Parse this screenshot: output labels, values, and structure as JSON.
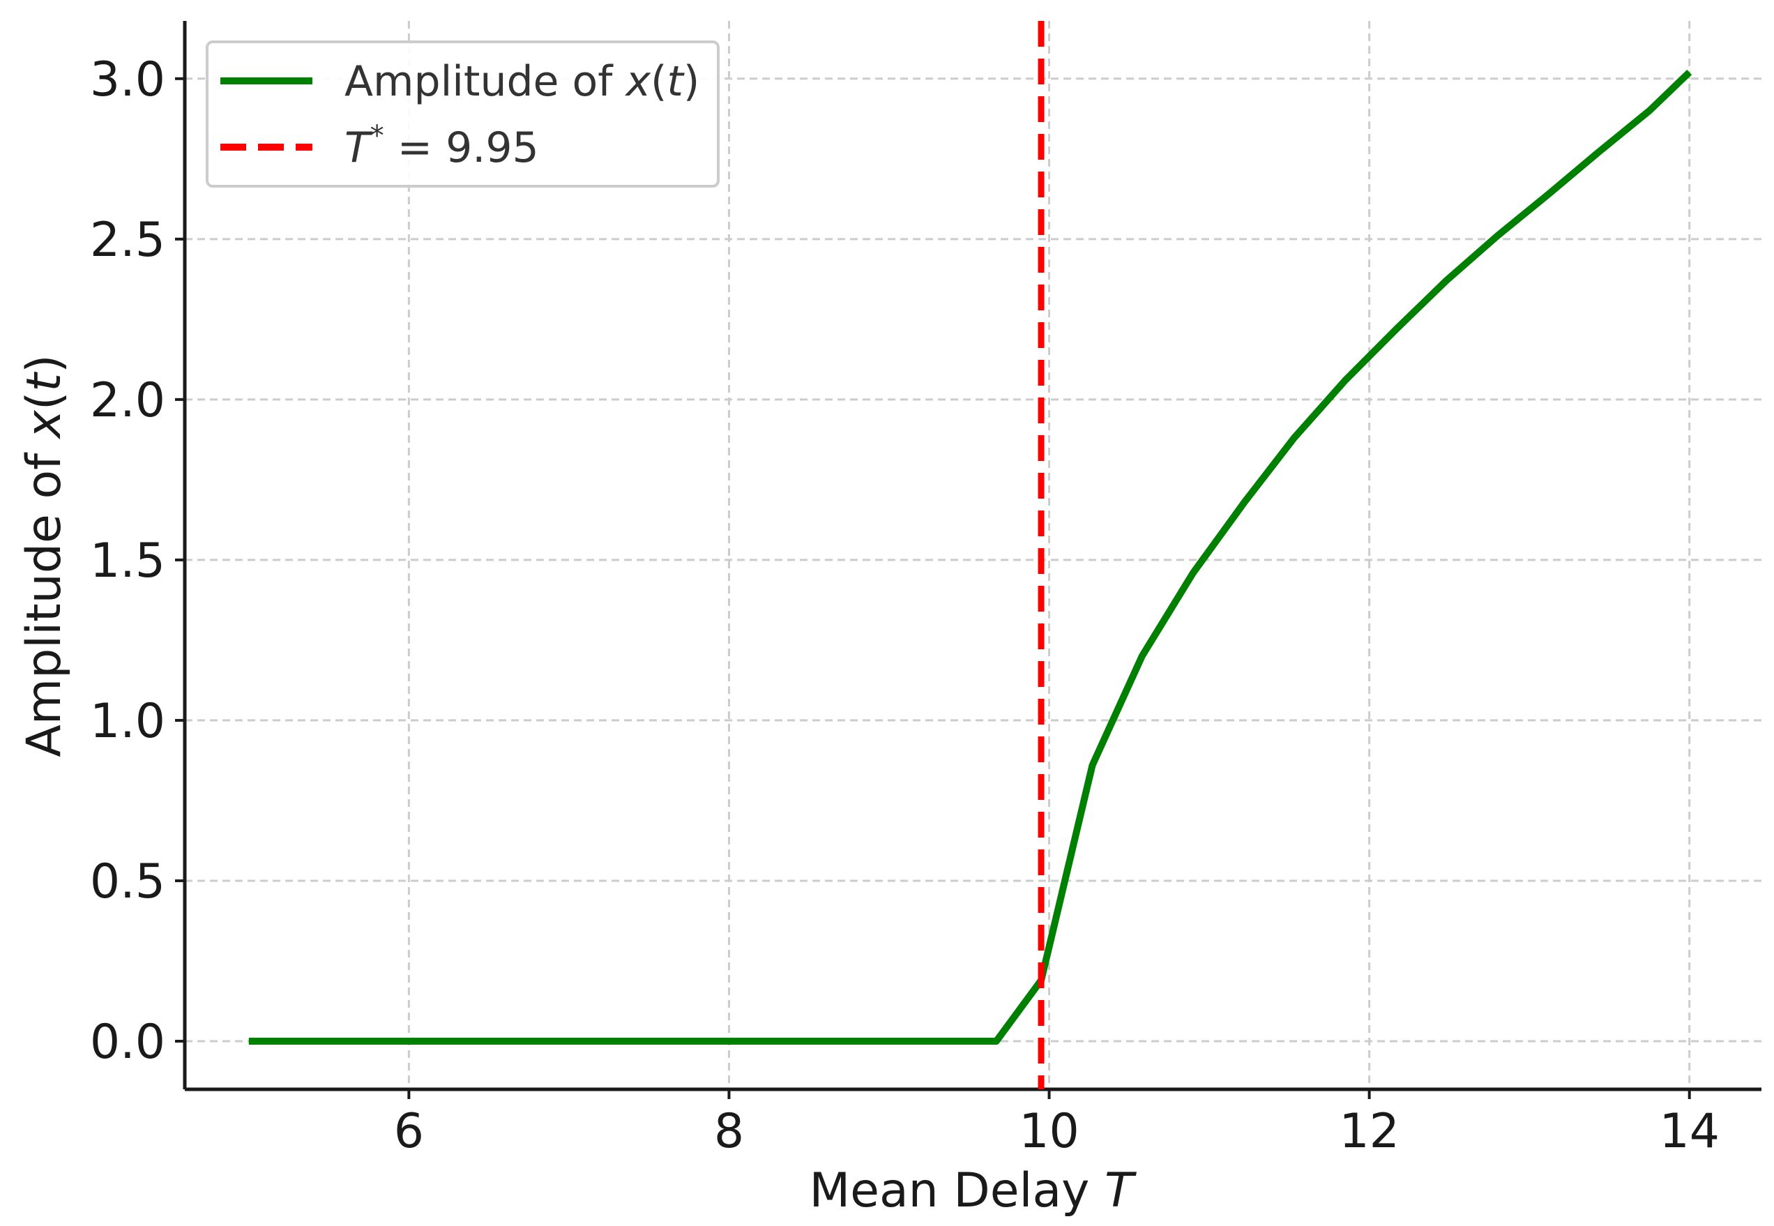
{
  "chart_data": {
    "type": "line",
    "title": "",
    "xlabel": "Mean Delay",
    "xlabel_symbol": "T",
    "ylabel_prefix": "Amplitude of ",
    "ylabel_var": "x",
    "ylabel_open": "(",
    "ylabel_arg": "t",
    "ylabel_close": ")",
    "xlim": [
      4.6,
      14.45
    ],
    "ylim": [
      -0.15,
      3.18
    ],
    "xticks": [
      6,
      8,
      10,
      12,
      14
    ],
    "xtick_labels": [
      "6",
      "8",
      "10",
      "12",
      "14"
    ],
    "yticks": [
      0.0,
      0.5,
      1.0,
      1.5,
      2.0,
      2.5,
      3.0
    ],
    "ytick_labels": [
      "0.0",
      "0.5",
      "1.0",
      "1.5",
      "2.0",
      "2.5",
      "3.0"
    ],
    "grid": true,
    "legend_position": "top-left",
    "series": [
      {
        "name": "Amplitude of x(t)",
        "legend_prefix": "Amplitude of ",
        "legend_var": "x",
        "legend_open": "(",
        "legend_arg": "t",
        "legend_close": ")",
        "color": "#008000",
        "style": "solid",
        "x": [
          5.0,
          5.33,
          5.67,
          6.0,
          6.33,
          6.67,
          7.0,
          7.33,
          7.67,
          8.0,
          8.33,
          8.67,
          9.0,
          9.33,
          9.67,
          9.95,
          10.27,
          10.58,
          10.9,
          11.22,
          11.53,
          11.85,
          12.17,
          12.48,
          12.8,
          13.12,
          13.43,
          13.75,
          14.0
        ],
        "y": [
          0,
          0,
          0,
          0,
          0,
          0,
          0,
          0,
          0,
          0,
          0,
          0,
          0,
          0,
          0,
          0.19,
          0.86,
          1.2,
          1.46,
          1.68,
          1.88,
          2.06,
          2.22,
          2.37,
          2.51,
          2.64,
          2.77,
          2.9,
          3.02
        ]
      }
    ],
    "vlines": [
      {
        "x": 9.95,
        "legend_symbol": "T",
        "legend_sup": "*",
        "legend_eq": " = 9.95",
        "color": "#ff0000",
        "style": "dashed"
      }
    ]
  }
}
